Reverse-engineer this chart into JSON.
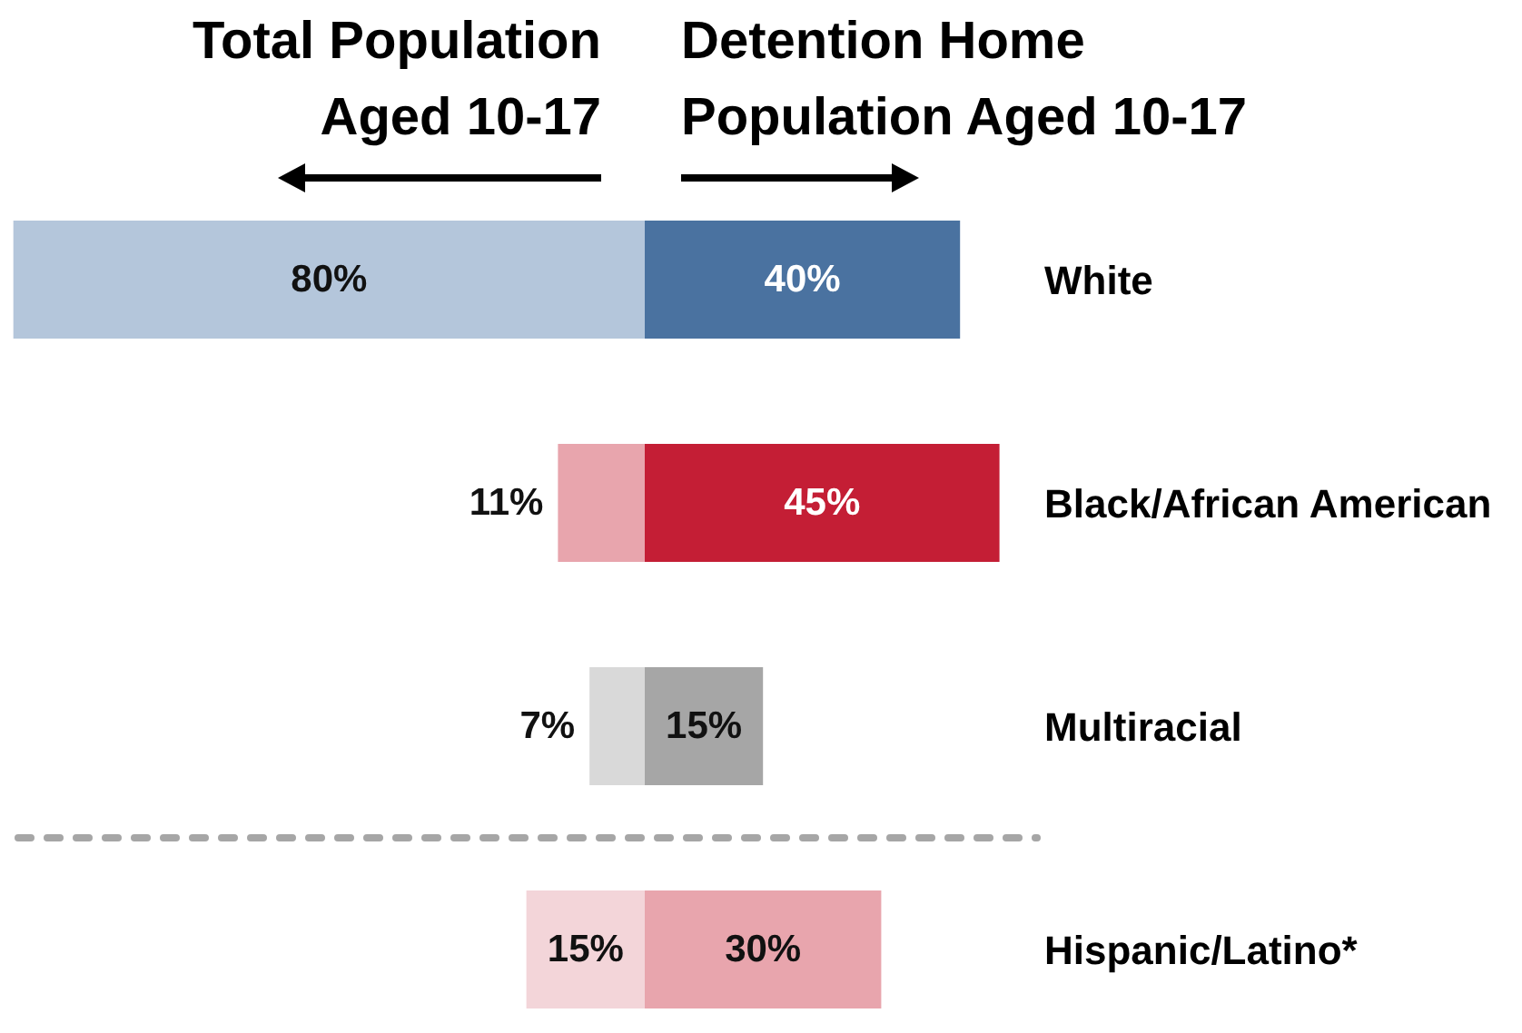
{
  "chart_data": [
    {
      "type": "bar",
      "orientation": "horizontal",
      "annotations": [
        "Total Population Aged 10-17"
      ],
      "categories": [
        "White",
        "Black/African American",
        "Multiracial",
        "Hispanic/Latino*"
      ],
      "values": [
        80,
        11,
        7,
        15
      ],
      "value_labels": [
        "80%",
        "11%",
        "7%",
        "15%"
      ],
      "colors": [
        "#b4c6db",
        "#e8a5ad",
        "#d9d9d9",
        "#f3d5d9"
      ],
      "xlim": [
        81,
        0
      ],
      "tick_labels": false
    },
    {
      "type": "bar",
      "orientation": "horizontal",
      "annotations": [
        "Detention Home Population Aged 10-17"
      ],
      "categories": [
        "White",
        "Black/African American",
        "Multiracial",
        "Hispanic/Latino*"
      ],
      "values": [
        40,
        45,
        15,
        30
      ],
      "value_labels": [
        "40%",
        "45%",
        "15%",
        "30%"
      ],
      "colors": [
        "#4a72a0",
        "#c41e35",
        "#a6a6a6",
        "#e8a5ad"
      ],
      "xlim": [
        0,
        50
      ],
      "tick_labels": "y"
    }
  ]
}
